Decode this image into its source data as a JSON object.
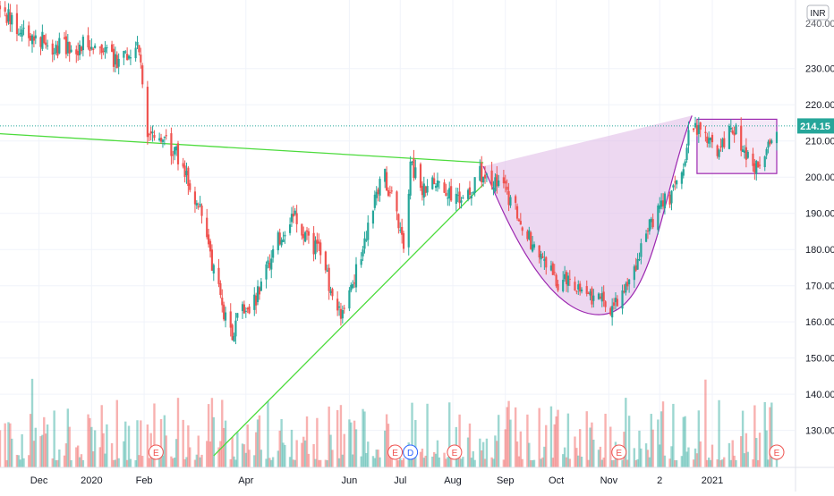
{
  "currency_badge": "INR",
  "price_label": {
    "value": "214.15"
  },
  "y_axis": {
    "ticks": [
      "230.00",
      "220.00",
      "210.00",
      "200.00",
      "190.00",
      "180.00",
      "170.00",
      "160.00",
      "150.00",
      "140.00",
      "130.00"
    ],
    "top_partial": "240.00"
  },
  "x_axis": {
    "ticks": [
      "Dec",
      "2020",
      "Feb",
      "Apr",
      "Jun",
      "Jul",
      "Aug",
      "Sep",
      "Oct",
      "Nov",
      "2",
      "2021"
    ]
  },
  "event_markers": [
    {
      "label": "E",
      "date": "2020-02-08",
      "kind": "earnings"
    },
    {
      "label": "E",
      "date": "2020-06-28",
      "kind": "earnings"
    },
    {
      "label": "D",
      "date": "2020-07-07",
      "kind": "dividend"
    },
    {
      "label": "E",
      "date": "2020-08-02",
      "kind": "earnings"
    },
    {
      "label": "E",
      "date": "2020-11-07",
      "kind": "earnings"
    },
    {
      "label": "E",
      "date": "2021-02-08",
      "kind": "earnings"
    }
  ],
  "colors": {
    "up": "#26a69a",
    "down": "#ef5350",
    "trendline": "#4cdb3c",
    "pattern_fill": "#e1bee7",
    "pattern_stroke": "#9c27b0",
    "price_line": "#26a69a",
    "axis_text": "#131722"
  },
  "chart_data": {
    "type": "candlestick",
    "ylim": [
      123,
      245
    ],
    "x_range": [
      "2019-11-08",
      "2021-02-08"
    ],
    "last_price": 214.15,
    "price_path": [
      [
        "2019-11-08",
        246
      ],
      [
        "2019-11-20",
        241
      ],
      [
        "2019-12-10",
        236
      ],
      [
        "2019-12-25",
        236
      ],
      [
        "2020-01-05",
        238
      ],
      [
        "2020-01-15",
        232
      ],
      [
        "2020-01-25",
        236
      ],
      [
        "2020-01-29",
        237
      ],
      [
        "2020-02-03",
        210
      ],
      [
        "2020-02-05",
        214
      ],
      [
        "2020-02-15",
        209
      ],
      [
        "2020-02-22",
        205
      ],
      [
        "2020-03-01",
        196
      ],
      [
        "2020-03-08",
        188
      ],
      [
        "2020-03-12",
        176
      ],
      [
        "2020-03-19",
        163
      ],
      [
        "2020-03-24",
        155
      ],
      [
        "2020-03-28",
        163
      ],
      [
        "2020-04-03",
        162
      ],
      [
        "2020-04-10",
        170
      ],
      [
        "2020-04-20",
        183
      ],
      [
        "2020-04-30",
        189
      ],
      [
        "2020-05-08",
        182
      ],
      [
        "2020-05-15",
        180
      ],
      [
        "2020-05-21",
        168
      ],
      [
        "2020-05-28",
        162
      ],
      [
        "2020-06-02",
        169
      ],
      [
        "2020-06-09",
        180
      ],
      [
        "2020-06-16",
        195
      ],
      [
        "2020-06-22",
        200
      ],
      [
        "2020-06-27",
        193
      ],
      [
        "2020-07-03",
        182
      ],
      [
        "2020-07-07",
        203
      ],
      [
        "2020-07-14",
        197
      ],
      [
        "2020-07-21",
        198
      ],
      [
        "2020-07-28",
        197
      ],
      [
        "2020-08-04",
        193
      ],
      [
        "2020-08-11",
        195
      ],
      [
        "2020-08-16",
        202
      ],
      [
        "2020-08-19",
        198
      ],
      [
        "2020-08-22",
        199
      ],
      [
        "2020-09-01",
        196
      ],
      [
        "2020-09-08",
        190
      ],
      [
        "2020-09-15",
        183
      ],
      [
        "2020-09-25",
        176
      ],
      [
        "2020-10-03",
        170
      ],
      [
        "2020-10-10",
        172
      ],
      [
        "2020-10-18",
        168
      ],
      [
        "2020-10-26",
        166
      ],
      [
        "2020-11-03",
        164
      ],
      [
        "2020-11-10",
        168
      ],
      [
        "2020-11-17",
        176
      ],
      [
        "2020-11-24",
        186
      ],
      [
        "2020-12-01",
        192
      ],
      [
        "2020-12-08",
        195
      ],
      [
        "2020-12-15",
        203
      ],
      [
        "2020-12-20",
        216
      ],
      [
        "2020-12-23",
        212
      ],
      [
        "2020-12-28",
        213
      ],
      [
        "2021-01-03",
        206
      ],
      [
        "2021-01-08",
        210
      ],
      [
        "2021-01-14",
        214
      ],
      [
        "2021-01-20",
        207
      ],
      [
        "2021-01-26",
        202
      ],
      [
        "2021-02-01",
        207
      ],
      [
        "2021-02-08",
        214.15
      ]
    ],
    "volume_max_ratio": 0.33,
    "annotations": {
      "descending_line": {
        "from": [
          "2019-11-08",
          212
        ],
        "to": [
          "2020-08-19",
          204
        ]
      },
      "ascending_line": {
        "from": [
          "2020-03-13",
          123
        ],
        "to": [
          "2020-08-19",
          198
        ]
      },
      "cup_curve": {
        "from": [
          "2020-08-19",
          203
        ],
        "to": [
          "2020-12-20",
          217
        ],
        "bottom": [
          "2020-10-27",
          162
        ]
      },
      "handle_box": {
        "from": [
          "2020-12-23",
          201
        ],
        "to": [
          "2021-02-08",
          216
        ]
      }
    }
  }
}
